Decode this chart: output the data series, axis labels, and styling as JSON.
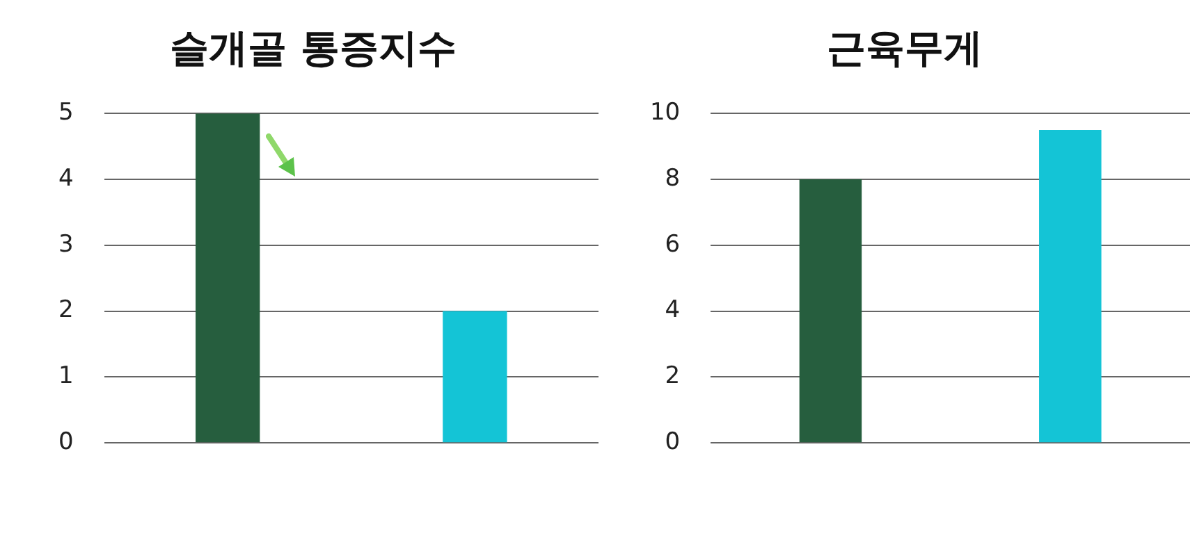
{
  "chart_data": [
    {
      "type": "bar",
      "title": "슬개골 통증지수",
      "categories": [
        null,
        null
      ],
      "colors": [
        "#265e3e",
        "#14c4d6"
      ],
      "values": [
        5,
        2
      ],
      "ylim": [
        0,
        5
      ],
      "yticks": [
        0,
        1,
        2,
        3,
        4,
        5
      ],
      "grid": "y",
      "legend": false
    },
    {
      "type": "bar",
      "title": "근육무게",
      "categories": [
        null,
        null
      ],
      "colors": [
        "#265e3e",
        "#14c4d6"
      ],
      "values": [
        8,
        9.5
      ],
      "ylim": [
        0,
        10
      ],
      "yticks": [
        0,
        2,
        4,
        6,
        8,
        10
      ],
      "grid": "y",
      "legend": false
    }
  ]
}
